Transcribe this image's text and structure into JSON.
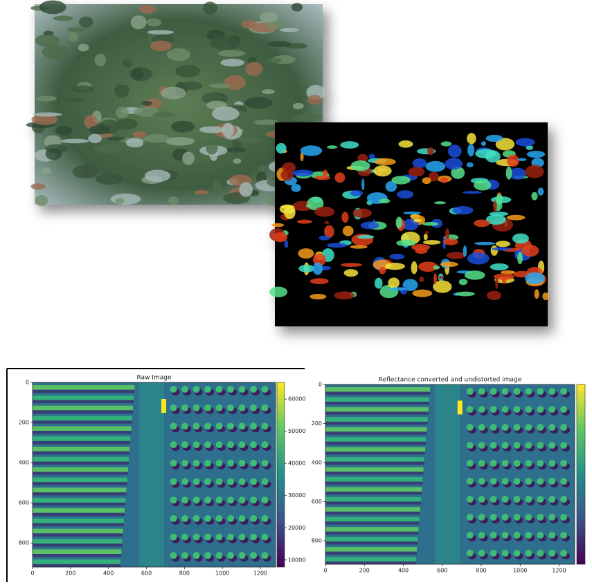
{
  "plots": [
    {
      "title": "Raw Image",
      "xlim": [
        0,
        1280
      ],
      "ylim": [
        0,
        920
      ],
      "xticks": [
        0,
        200,
        400,
        600,
        800,
        1000,
        1200
      ],
      "yticks": [
        0,
        200,
        400,
        600,
        800
      ],
      "colorbar": {
        "lim": [
          7800,
          65200
        ],
        "ticks": [
          10000,
          20000,
          30000,
          40000,
          50000,
          60000
        ]
      }
    },
    {
      "title": "Reflectance converted and undistorted image",
      "xlim": [
        0,
        1280
      ],
      "ylim": [
        0,
        920
      ],
      "xticks": [
        0,
        200,
        400,
        600,
        800,
        1000,
        1200
      ],
      "yticks": [
        0,
        200,
        400,
        600,
        800
      ]
    }
  ]
}
